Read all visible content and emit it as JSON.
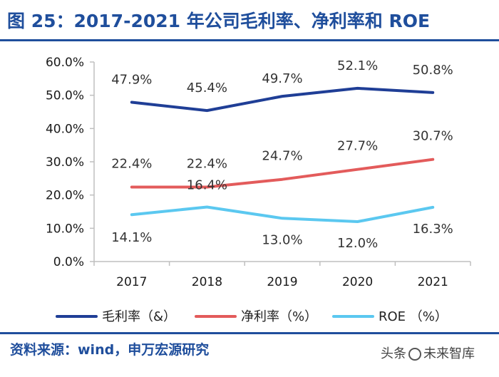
{
  "header": {
    "title": "图 25：2017-2021 年公司毛利率、净利率和 ROE"
  },
  "footer": {
    "source": "资料来源：wind，申万宏源研究",
    "watermark_prefix": "头条",
    "watermark_text": "未来智库"
  },
  "chart_data": {
    "type": "line",
    "categories": [
      "2017",
      "2018",
      "2019",
      "2020",
      "2021"
    ],
    "ylim": [
      0,
      60
    ],
    "yticks": [
      0,
      10,
      20,
      30,
      40,
      50,
      60
    ],
    "ytick_labels": [
      "0.0%",
      "10.0%",
      "20.0%",
      "30.0%",
      "40.0%",
      "50.0%",
      "60.0%"
    ],
    "grid": false,
    "legend_position": "bottom",
    "series": [
      {
        "name": "毛利率（&）",
        "color": "#1f3e96",
        "values": [
          47.9,
          45.4,
          49.7,
          52.1,
          50.8
        ],
        "labels": [
          "47.9%",
          "45.4%",
          "49.7%",
          "52.1%",
          "50.8%"
        ]
      },
      {
        "name": "净利率（%）",
        "color": "#e35b5b",
        "values": [
          22.4,
          22.4,
          24.7,
          27.7,
          30.7
        ],
        "labels": [
          "22.4%",
          "22.4%",
          "24.7%",
          "27.7%",
          "30.7%"
        ]
      },
      {
        "name": "ROE （%）",
        "color": "#5bc8f0",
        "values": [
          14.1,
          16.4,
          13.0,
          12.0,
          16.3
        ],
        "labels": [
          "14.1%",
          "16.4%",
          "13.0%",
          "12.0%",
          "16.3%"
        ]
      }
    ]
  }
}
